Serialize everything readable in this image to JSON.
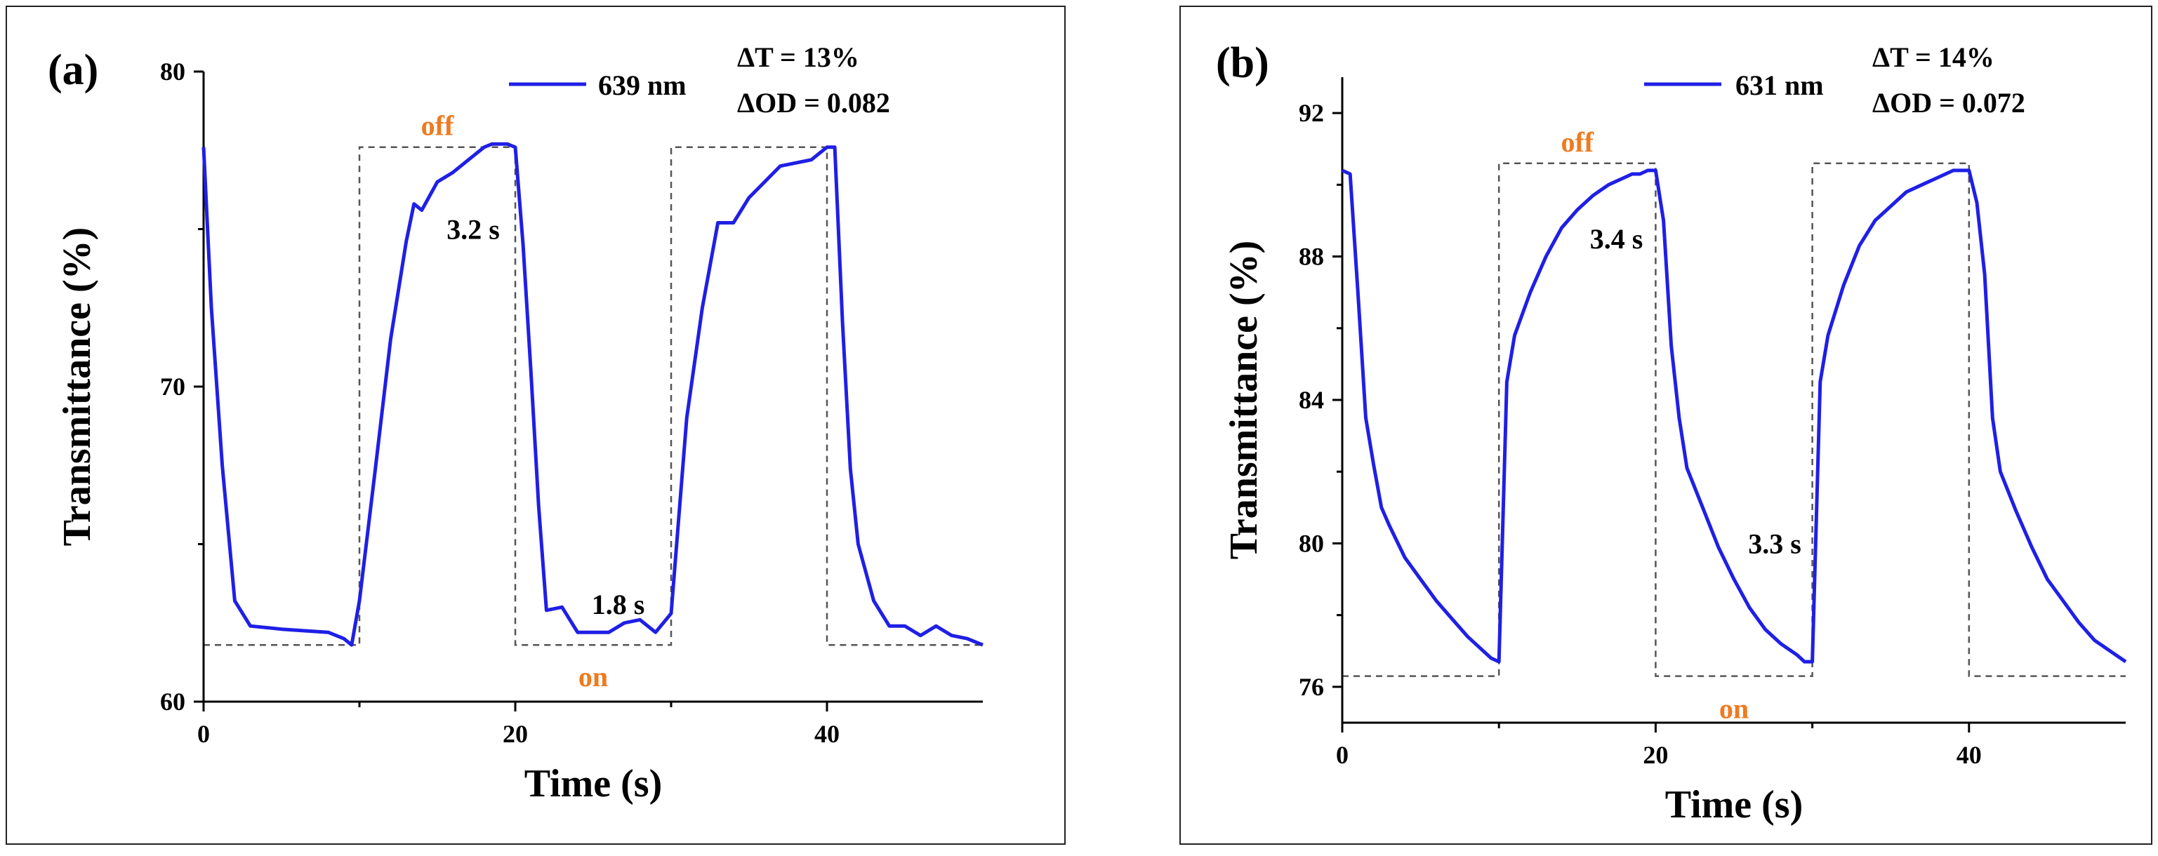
{
  "colors": {
    "series": "#1f1fe6",
    "state_label": "#f07a1e",
    "square_wave": "#555555",
    "axis": "#000000"
  },
  "chart_data": [
    {
      "type": "line",
      "panel_label": "(a)",
      "xlabel": "Time (s)",
      "ylabel": "Transmittance (%)",
      "xlim": [
        0,
        50
      ],
      "ylim": [
        60,
        80
      ],
      "xticks": [
        0,
        20,
        40
      ],
      "xtick_labels": [
        "0",
        "20",
        "40"
      ],
      "yticks": [
        60,
        70,
        80
      ],
      "ytick_labels": [
        "60",
        "70",
        "80"
      ],
      "legend": {
        "label": "639 nm",
        "position": "top-right"
      },
      "stats": [
        "ΔT = 13%",
        "ΔOD = 0.082"
      ],
      "annotations": [
        {
          "text": "3.2 s",
          "x": 17.3,
          "y": 75.0
        },
        {
          "text": "1.8 s",
          "x": 26.6,
          "y": 63.1
        }
      ],
      "state_labels": [
        {
          "text": "off",
          "x": 15.0,
          "y": 78.3
        },
        {
          "text": "on",
          "x": 25.0,
          "y": 60.8
        }
      ],
      "square_wave": {
        "x": [
          0,
          10,
          10,
          20,
          20,
          30,
          30,
          40,
          40,
          50
        ],
        "y": [
          61.8,
          61.8,
          77.6,
          77.6,
          61.8,
          61.8,
          77.6,
          77.6,
          61.8,
          61.8
        ]
      },
      "series": [
        {
          "name": "639 nm",
          "x": [
            0,
            0.5,
            1.2,
            2,
            3,
            5,
            8,
            9,
            9.5,
            10,
            11,
            12,
            13,
            13.5,
            14,
            15,
            16,
            17,
            18,
            18.5,
            19,
            19.5,
            20,
            20.5,
            21,
            21.5,
            22,
            23,
            24,
            25,
            26,
            27,
            28,
            29,
            30,
            31,
            32,
            33,
            34,
            35,
            36,
            37,
            38,
            39,
            39.5,
            40,
            40.5,
            41,
            41.5,
            42,
            43,
            44,
            45,
            46,
            47,
            48,
            49,
            50
          ],
          "y": [
            77.6,
            72.5,
            67.5,
            63.2,
            62.4,
            62.3,
            62.2,
            62.0,
            61.8,
            63.2,
            67.3,
            71.5,
            74.6,
            75.8,
            75.6,
            76.5,
            76.8,
            77.2,
            77.6,
            77.7,
            77.7,
            77.7,
            77.6,
            74.5,
            70.5,
            66.2,
            62.9,
            63.0,
            62.2,
            62.2,
            62.2,
            62.5,
            62.6,
            62.2,
            62.8,
            69.0,
            72.5,
            75.2,
            75.2,
            76.0,
            76.5,
            77.0,
            77.1,
            77.2,
            77.4,
            77.6,
            77.6,
            72.0,
            67.4,
            65.0,
            63.2,
            62.4,
            62.4,
            62.1,
            62.4,
            62.1,
            62.0,
            61.8
          ]
        }
      ]
    },
    {
      "type": "line",
      "panel_label": "(b)",
      "xlabel": "Time (s)",
      "ylabel": "Transmittance (%)",
      "xlim": [
        0,
        50
      ],
      "ylim": [
        75,
        93
      ],
      "xticks": [
        0,
        20,
        40
      ],
      "xtick_labels": [
        "0",
        "20",
        "40"
      ],
      "yticks": [
        76,
        80,
        84,
        88,
        92
      ],
      "ytick_labels": [
        "76",
        "80",
        "84",
        "88",
        "92"
      ],
      "legend": {
        "label": "631 nm",
        "position": "top-right"
      },
      "stats": [
        "ΔT = 14%",
        "ΔOD = 0.072"
      ],
      "annotations": [
        {
          "text": "3.4 s",
          "x": 17.5,
          "y": 88.5
        },
        {
          "text": "3.3 s",
          "x": 27.6,
          "y": 80.0
        }
      ],
      "state_labels": [
        {
          "text": "off",
          "x": 15.0,
          "y": 91.2
        },
        {
          "text": "on",
          "x": 25.0,
          "y": 75.4
        }
      ],
      "square_wave": {
        "x": [
          0,
          10,
          10,
          20,
          20,
          30,
          30,
          40,
          40,
          50
        ],
        "y": [
          76.3,
          76.3,
          90.6,
          90.6,
          76.3,
          76.3,
          90.6,
          90.6,
          76.3,
          76.3
        ]
      },
      "series": [
        {
          "name": "631 nm",
          "x": [
            0,
            0.5,
            1,
            1.5,
            2,
            2.5,
            3,
            4,
            5,
            6,
            7,
            8,
            9,
            9.5,
            10,
            10.5,
            11,
            12,
            13,
            14,
            15,
            16,
            17,
            18,
            18.5,
            19,
            19.5,
            20,
            20.5,
            21,
            21.5,
            22,
            23,
            24,
            25,
            26,
            27,
            28,
            29,
            29.5,
            30,
            30.5,
            31,
            32,
            33,
            34,
            35,
            36,
            37,
            38,
            38.5,
            39,
            39.5,
            40,
            40.5,
            41,
            41.5,
            42,
            43,
            44,
            45,
            46,
            47,
            48,
            49,
            50
          ],
          "y": [
            90.4,
            90.3,
            87.0,
            83.5,
            82.2,
            81.0,
            80.5,
            79.6,
            79.0,
            78.4,
            77.9,
            77.4,
            77.0,
            76.8,
            76.7,
            84.5,
            85.8,
            87.0,
            88.0,
            88.8,
            89.3,
            89.7,
            90.0,
            90.2,
            90.3,
            90.3,
            90.4,
            90.4,
            89.0,
            85.5,
            83.5,
            82.1,
            81.0,
            79.9,
            79.0,
            78.2,
            77.6,
            77.2,
            76.9,
            76.7,
            76.7,
            84.5,
            85.8,
            87.2,
            88.3,
            89.0,
            89.4,
            89.8,
            90.0,
            90.2,
            90.3,
            90.4,
            90.4,
            90.4,
            89.5,
            87.5,
            83.5,
            82.0,
            80.9,
            79.9,
            79.0,
            78.4,
            77.8,
            77.3,
            77.0,
            76.7
          ]
        }
      ]
    }
  ]
}
